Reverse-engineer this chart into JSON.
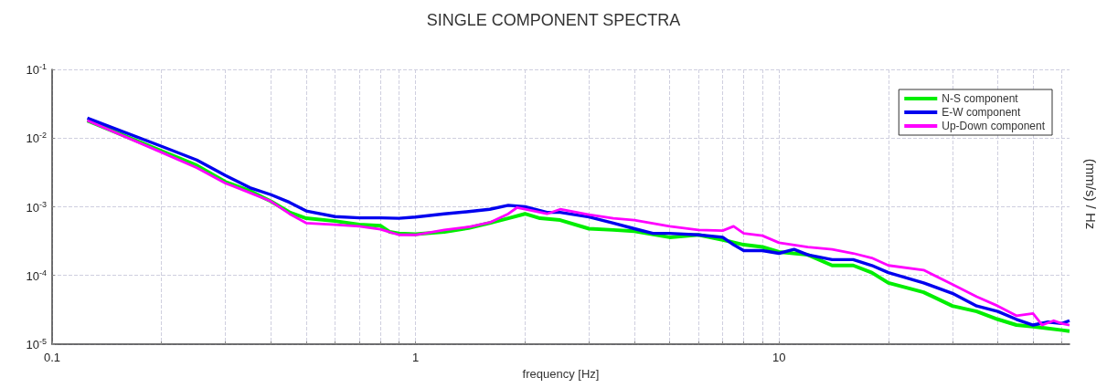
{
  "chart_data": {
    "type": "line",
    "title": "SINGLE COMPONENT SPECTRA",
    "xlabel": "frequency [Hz]",
    "ylabel": "(mm/s) / Hz",
    "log": "xy",
    "grid": true,
    "legend": "top right",
    "marker": "none",
    "line_style": "solid",
    "xlim": [
      0.1,
      63
    ],
    "ylim": [
      1e-05,
      0.1
    ],
    "xticks": [
      0.1,
      {
        "value": 0.2,
        "label": null
      },
      {
        "value": 0.3,
        "label": null
      },
      {
        "value": 0.4,
        "label": null
      },
      {
        "value": 0.5,
        "label": null
      },
      {
        "value": 0.6,
        "label": null
      },
      {
        "value": 0.7,
        "label": null
      },
      {
        "value": 0.8,
        "label": null
      },
      {
        "value": 0.9,
        "label": null
      },
      1,
      {
        "value": 2,
        "label": null
      },
      {
        "value": 3,
        "label": null
      },
      {
        "value": 4,
        "label": null
      },
      {
        "value": 5,
        "label": null
      },
      {
        "value": 6,
        "label": null
      },
      {
        "value": 7,
        "label": null
      },
      {
        "value": 8,
        "label": null
      },
      {
        "value": 9,
        "label": null
      },
      10,
      {
        "value": 20,
        "label": null
      },
      {
        "value": 30,
        "label": null
      },
      {
        "value": 40,
        "label": null
      },
      {
        "value": 50,
        "label": null
      },
      {
        "value": 60,
        "label": null
      }
    ],
    "yticks": [
      {
        "value": 1e-05,
        "label": "10$^{-5}$"
      },
      {
        "value": 0.0001,
        "label": "10$^{-4}$"
      },
      {
        "value": 0.001,
        "label": "10$^{-3}$"
      },
      {
        "value": 0.01,
        "label": "10$^{-2}$"
      },
      {
        "value": 0.1,
        "label": "10$^{-1}$"
      }
    ],
    "series": [
      {
        "name": "N-S component",
        "color": "#00ee00",
        "x": [
          0.125,
          0.2,
          0.25,
          0.3,
          0.35,
          0.4,
          0.45,
          0.5,
          0.6,
          0.7,
          0.8,
          0.85,
          0.9,
          1,
          1.2,
          1.4,
          1.6,
          1.8,
          2,
          2.2,
          2.5,
          3,
          3.5,
          4,
          5,
          6,
          7,
          8,
          9,
          10,
          12,
          14,
          16,
          18,
          20,
          25,
          30,
          35,
          40,
          45,
          50,
          55,
          60,
          63
        ],
        "values": [
          0.018,
          0.0065,
          0.004,
          0.0023,
          0.0017,
          0.0012,
          0.00083,
          0.00068,
          0.00062,
          0.00055,
          0.00053,
          0.00043,
          0.00041,
          0.0004,
          0.00043,
          0.00049,
          0.00058,
          0.00068,
          0.00079,
          0.00068,
          0.00064,
          0.00048,
          0.00046,
          0.00044,
          0.00036,
          0.00039,
          0.00033,
          0.00028,
          0.00026,
          0.00022,
          0.0002,
          0.00014,
          0.00014,
          0.00011,
          7.8e-05,
          5.7e-05,
          3.6e-05,
          3e-05,
          2.3e-05,
          1.9e-05,
          1.8e-05,
          1.7e-05,
          1.6e-05,
          1.55e-05
        ]
      },
      {
        "name": "E-W component",
        "color": "#0000ee",
        "x": [
          0.125,
          0.2,
          0.25,
          0.3,
          0.35,
          0.4,
          0.45,
          0.5,
          0.6,
          0.7,
          0.8,
          0.9,
          1,
          1.2,
          1.4,
          1.6,
          1.8,
          2,
          2.3,
          2.5,
          3,
          3.5,
          4,
          4.5,
          5,
          6,
          7,
          7.5,
          8,
          9,
          10,
          11,
          12,
          14,
          16,
          18,
          20,
          25,
          30,
          35,
          40,
          45,
          50,
          55,
          60,
          63
        ],
        "values": [
          0.0195,
          0.0076,
          0.0048,
          0.00285,
          0.0019,
          0.0015,
          0.00116,
          0.00087,
          0.00072,
          0.00069,
          0.00069,
          0.00068,
          0.00071,
          0.00079,
          0.00085,
          0.00092,
          0.00105,
          0.001,
          0.00083,
          0.00083,
          0.00071,
          0.00058,
          0.00048,
          0.00041,
          0.00041,
          0.00039,
          0.00036,
          0.00028,
          0.00023,
          0.00023,
          0.00021,
          0.00024,
          0.0002,
          0.00017,
          0.00017,
          0.00014,
          0.00011,
          7.8e-05,
          5.5e-05,
          3.6e-05,
          3e-05,
          2.3e-05,
          1.9e-05,
          2.1e-05,
          2e-05,
          2.2e-05
        ]
      },
      {
        "name": "Up-Down component",
        "color": "#ff00ff",
        "x": [
          0.125,
          0.2,
          0.25,
          0.3,
          0.35,
          0.4,
          0.45,
          0.5,
          0.6,
          0.7,
          0.8,
          0.9,
          1,
          1.2,
          1.4,
          1.6,
          1.8,
          1.9,
          2,
          2.3,
          2.5,
          3,
          3.5,
          4,
          5,
          6,
          7,
          7.5,
          8,
          9,
          10,
          12,
          14,
          16,
          18,
          20,
          25,
          30,
          35,
          40,
          45,
          50,
          53,
          57,
          60,
          63
        ],
        "values": [
          0.018,
          0.0062,
          0.0037,
          0.0022,
          0.0016,
          0.0012,
          0.00079,
          0.00058,
          0.00055,
          0.00052,
          0.00047,
          0.00039,
          0.00039,
          0.00046,
          0.00051,
          0.00059,
          0.00079,
          0.00097,
          0.00092,
          0.00079,
          0.00092,
          0.00077,
          0.00068,
          0.00064,
          0.00052,
          0.00046,
          0.00045,
          0.00052,
          0.00041,
          0.00038,
          0.0003,
          0.00026,
          0.00024,
          0.00021,
          0.00018,
          0.00014,
          0.00012,
          7.4e-05,
          4.9e-05,
          3.6e-05,
          2.6e-05,
          2.8e-05,
          1.9e-05,
          2.2e-05,
          2e-05,
          1.9e-05
        ]
      }
    ]
  }
}
